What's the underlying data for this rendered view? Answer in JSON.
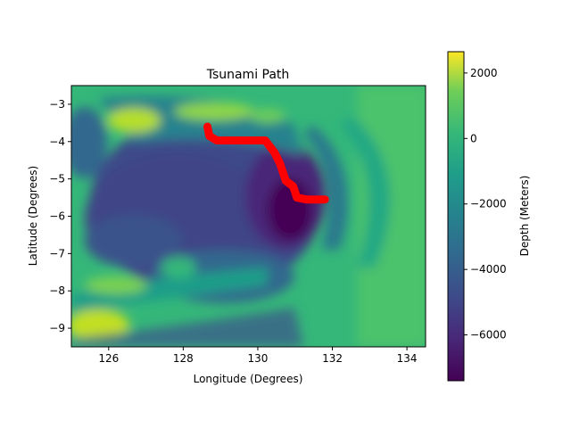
{
  "chart_data": {
    "type": "heatmap",
    "title": "Tsunami Path",
    "xlabel": "Longitude (Degrees)",
    "ylabel": "Latitude (Degrees)",
    "xlim": [
      125.0,
      134.5
    ],
    "ylim": [
      -9.5,
      -2.5
    ],
    "xticks": [
      126,
      128,
      130,
      132,
      134
    ],
    "yticks": [
      -3,
      -4,
      -5,
      -6,
      -7,
      -8,
      -9
    ],
    "colorbar": {
      "label": "Depth (Meters)",
      "range": [
        -7400,
        2650
      ],
      "ticks": [
        2000,
        0,
        -2000,
        -4000,
        -6000
      ],
      "colormap": "viridis"
    },
    "path_color": "#ff0000",
    "path": [
      [
        128.65,
        -3.6
      ],
      [
        128.7,
        -3.85
      ],
      [
        128.9,
        -3.97
      ],
      [
        129.5,
        -3.97
      ],
      [
        130.2,
        -3.97
      ],
      [
        130.45,
        -4.3
      ],
      [
        130.6,
        -4.6
      ],
      [
        130.75,
        -5.05
      ],
      [
        130.95,
        -5.2
      ],
      [
        131.05,
        -5.5
      ],
      [
        131.3,
        -5.55
      ],
      [
        131.8,
        -5.55
      ]
    ],
    "grid": false,
    "legend": "none"
  }
}
